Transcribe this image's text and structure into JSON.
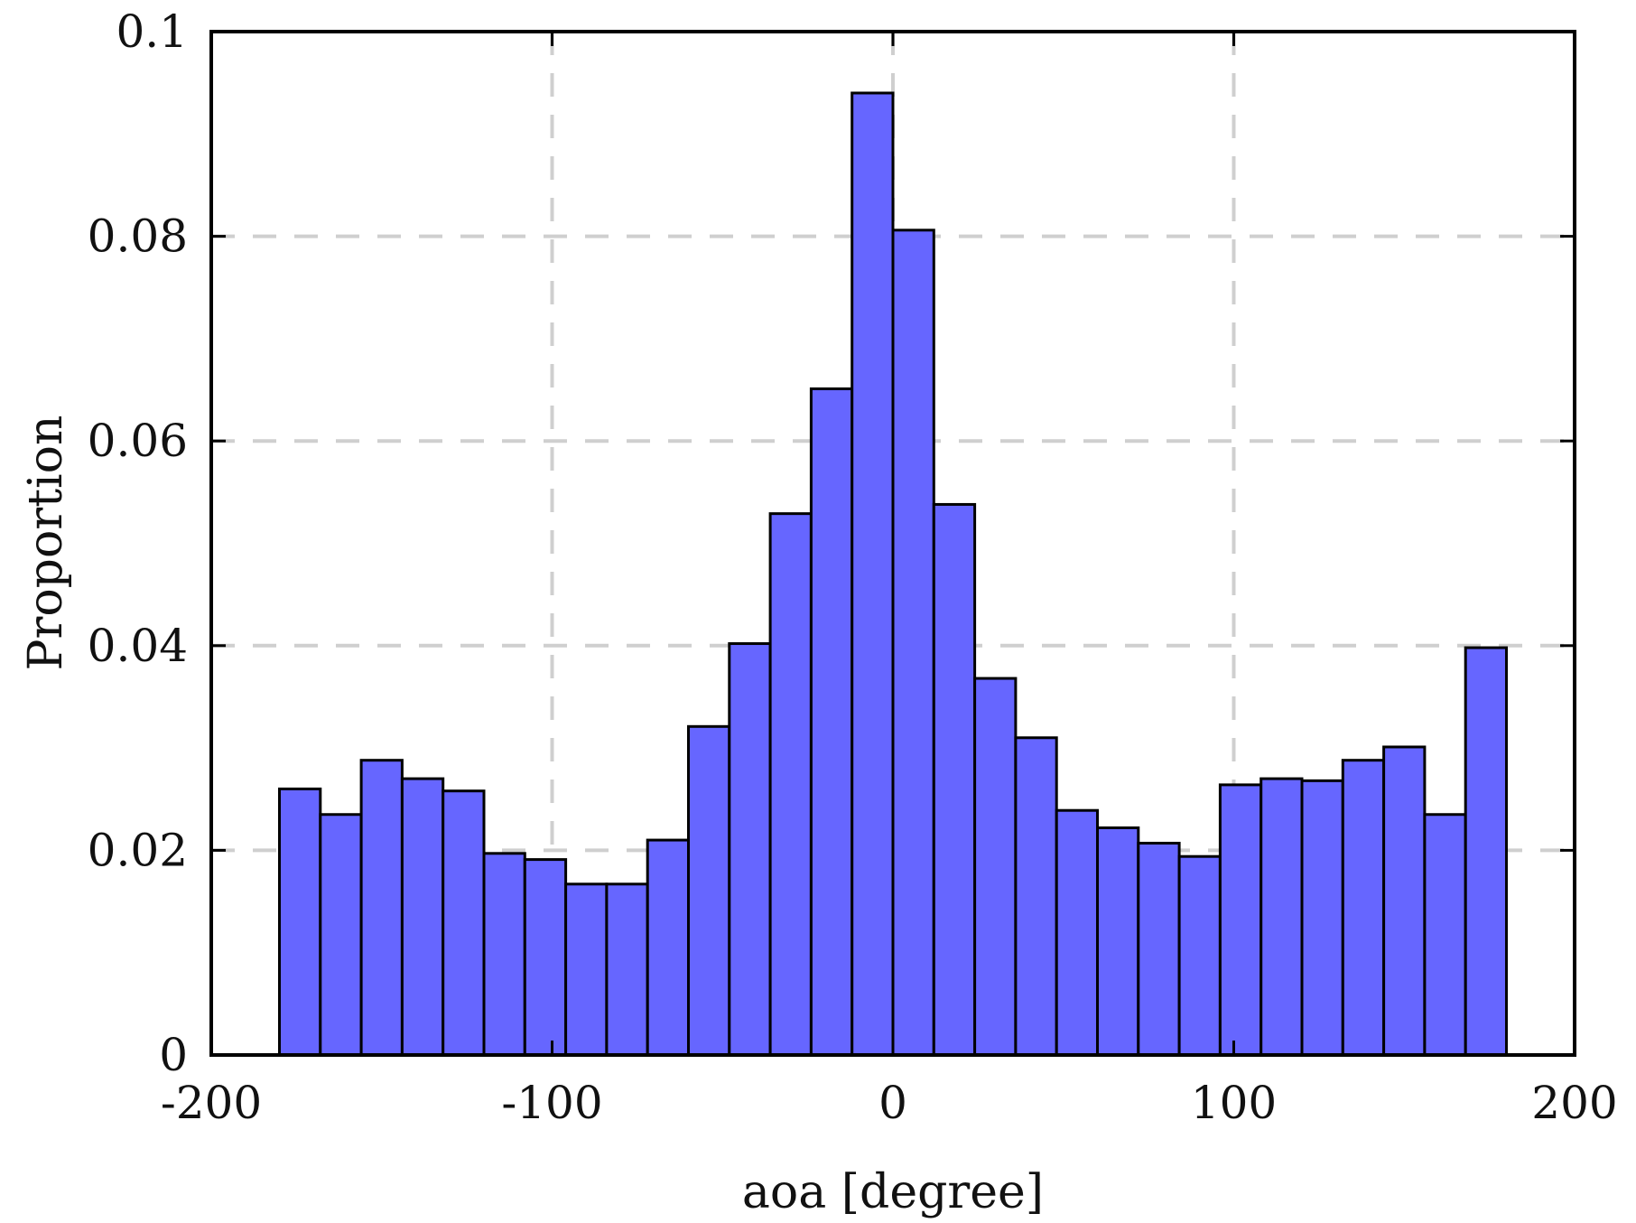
{
  "chart_data": {
    "type": "bar",
    "title": "",
    "xlabel": "aoa [degree]",
    "ylabel": "Proportion",
    "xlim": [
      -200,
      200
    ],
    "ylim": [
      0,
      0.1
    ],
    "grid": true,
    "bar_color": "#6666ff",
    "edge_color": "#000000",
    "x_ticks": [
      "-200",
      "-100",
      "0",
      "100",
      "200"
    ],
    "y_ticks": [
      "0",
      "0.02",
      "0.04",
      "0.06",
      "0.08",
      "0.1"
    ],
    "bin_edges": [
      -180,
      -168,
      -156,
      -144,
      -132,
      -120,
      -108,
      -96,
      -84,
      -72,
      -60,
      -48,
      -36,
      -24,
      -12,
      0,
      12,
      24,
      36,
      48,
      60,
      72,
      84,
      96,
      108,
      120,
      132,
      144,
      156,
      168,
      180
    ],
    "values": [
      0.026,
      0.0235,
      0.0288,
      0.027,
      0.0258,
      0.0197,
      0.0191,
      0.0167,
      0.0167,
      0.021,
      0.0321,
      0.0402,
      0.0529,
      0.0651,
      0.094,
      0.0806,
      0.0538,
      0.0368,
      0.031,
      0.0239,
      0.0222,
      0.0207,
      0.0194,
      0.0264,
      0.027,
      0.0268,
      0.0288,
      0.0301,
      0.0235,
      0.0398
    ]
  }
}
